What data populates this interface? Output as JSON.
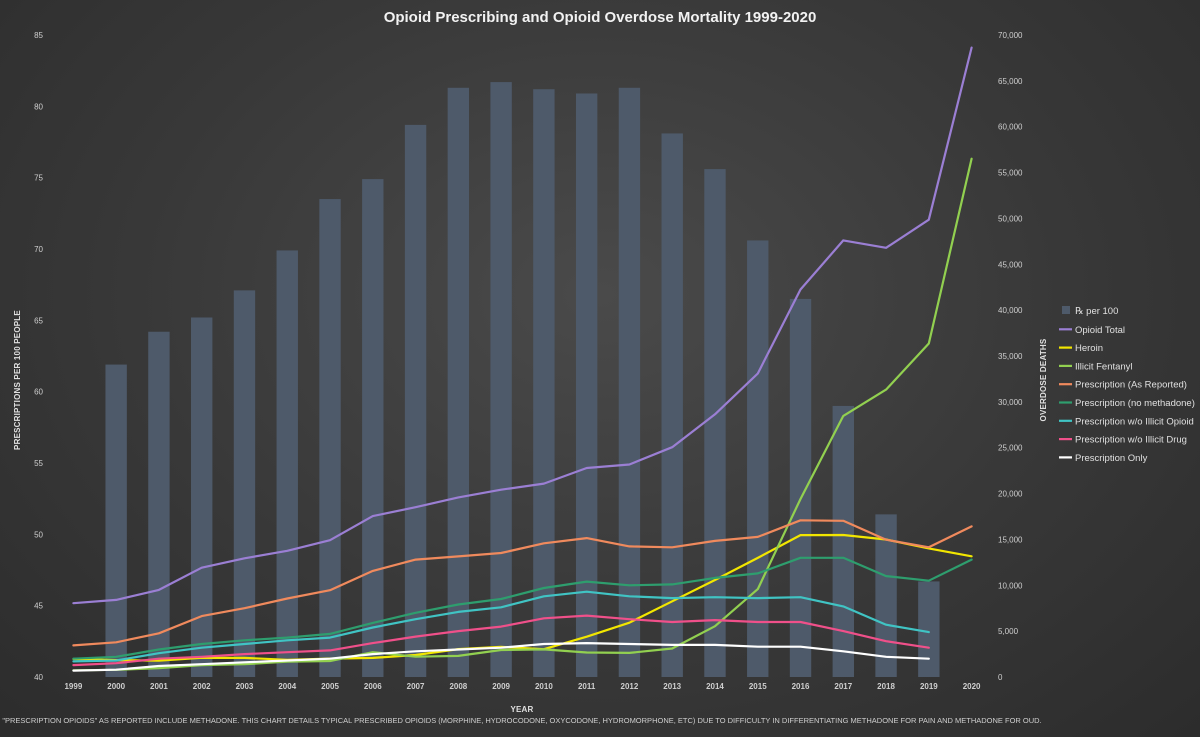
{
  "chart_data": {
    "type": "bar+line",
    "title": "Opioid Prescribing and Opioid Overdose Mortality 1999-2020",
    "xlabel": "YEAR",
    "ylabel_left": "PRESCRIPTIONS PER 100 PEOPLE",
    "ylabel_right": "OVERDOSE DEATHS",
    "categories": [
      "1999",
      "2000",
      "2001",
      "2002",
      "2003",
      "2004",
      "2005",
      "2006",
      "2007",
      "2008",
      "2009",
      "2010",
      "2011",
      "2012",
      "2013",
      "2014",
      "2015",
      "2016",
      "2017",
      "2018",
      "2019",
      "2020"
    ],
    "ylim_left": [
      40,
      85
    ],
    "left_ticks": [
      "40",
      "45",
      "50",
      "55",
      "60",
      "65",
      "70",
      "75",
      "80",
      "85"
    ],
    "ylim_right": [
      0,
      70000
    ],
    "right_ticks": [
      "0",
      "5,000",
      "10,000",
      "15,000",
      "20,000",
      "25,000",
      "30,000",
      "35,000",
      "40,000",
      "45,000",
      "50,000",
      "55,000",
      "60,000",
      "65,000",
      "70,000"
    ],
    "bars": {
      "name": "℞ per 100",
      "color": "#4e5a6a",
      "values": [
        null,
        61.9,
        64.2,
        65.2,
        67.1,
        69.9,
        73.5,
        74.9,
        78.7,
        81.3,
        81.7,
        81.2,
        80.9,
        81.3,
        78.1,
        75.6,
        70.6,
        66.5,
        59.0,
        51.4,
        46.7,
        null
      ]
    },
    "series": [
      {
        "name": "Opioid Total",
        "color": "#9b7fd4",
        "values": [
          8048,
          8407,
          9496,
          11920,
          12940,
          13756,
          14918,
          17545,
          18516,
          19582,
          20422,
          21089,
          22784,
          23166,
          25052,
          28647,
          33091,
          42249,
          47600,
          46802,
          49860,
          68630
        ]
      },
      {
        "name": "Heroin",
        "color": "#f2e600",
        "values": [
          1960,
          1842,
          1779,
          2089,
          2080,
          1878,
          2009,
          2088,
          2399,
          3041,
          3278,
          3036,
          4397,
          5925,
          8257,
          10574,
          12989,
          15469,
          15482,
          14996,
          14019,
          13165
        ]
      },
      {
        "name": "Illicit Fentanyl",
        "color": "#92d050",
        "values": [
          730,
          782,
          957,
          1295,
          1400,
          1664,
          1742,
          2707,
          2213,
          2306,
          2946,
          3007,
          2666,
          2628,
          3105,
          5544,
          9580,
          19413,
          28466,
          31335,
          36359,
          56516
        ]
      },
      {
        "name": "Prescription (As Reported)",
        "color": "#f08a5d",
        "values": [
          3442,
          3785,
          4770,
          6635,
          7500,
          8556,
          9461,
          11565,
          12796,
          13149,
          13523,
          14583,
          15140,
          14240,
          14145,
          14838,
          15281,
          17087,
          17029,
          14975,
          14139,
          16416
        ]
      },
      {
        "name": "Prescription (no methadone)",
        "color": "#2e9e6e",
        "values": [
          2000,
          2200,
          3000,
          3600,
          4000,
          4300,
          4700,
          5900,
          7000,
          7900,
          8500,
          9700,
          10400,
          10000,
          10100,
          10800,
          11300,
          13000,
          13000,
          11000,
          10500,
          12800
        ]
      },
      {
        "name": "Prescription w/o Illicit Opioid",
        "color": "#40c4c4",
        "values": [
          1700,
          1800,
          2600,
          3200,
          3600,
          4000,
          4300,
          5400,
          6300,
          7100,
          7600,
          8800,
          9300,
          8800,
          8600,
          8700,
          8600,
          8700,
          7700,
          5700,
          4900,
          null
        ]
      },
      {
        "name": "Prescription w/o Illicit Drug",
        "color": "#f0508a",
        "values": [
          1300,
          1500,
          2000,
          2200,
          2500,
          2700,
          2900,
          3700,
          4400,
          5000,
          5500,
          6400,
          6700,
          6300,
          6000,
          6200,
          6000,
          6000,
          5000,
          3900,
          3200,
          null
        ]
      },
      {
        "name": "Prescription Only",
        "color": "#ffffff",
        "values": [
          700,
          800,
          1200,
          1400,
          1600,
          1800,
          2000,
          2500,
          2800,
          3000,
          3200,
          3600,
          3700,
          3600,
          3500,
          3500,
          3300,
          3300,
          2800,
          2200,
          2000,
          null
        ]
      }
    ],
    "legend_position": "right, middle",
    "footnote": "\"PRESCRIPTION OPIOIDS\" AS REPORTED INCLUDE METHADONE. THIS CHART DETAILS TYPICAL PRESCRIBED OPIOIDS (MORPHINE, HYDROCODONE, OXYCODONE, HYDROMORPHONE, ETC) DUE TO DIFFICULTY IN DIFFERENTIATING METHADONE FOR PAIN AND METHADONE FOR OUD."
  }
}
